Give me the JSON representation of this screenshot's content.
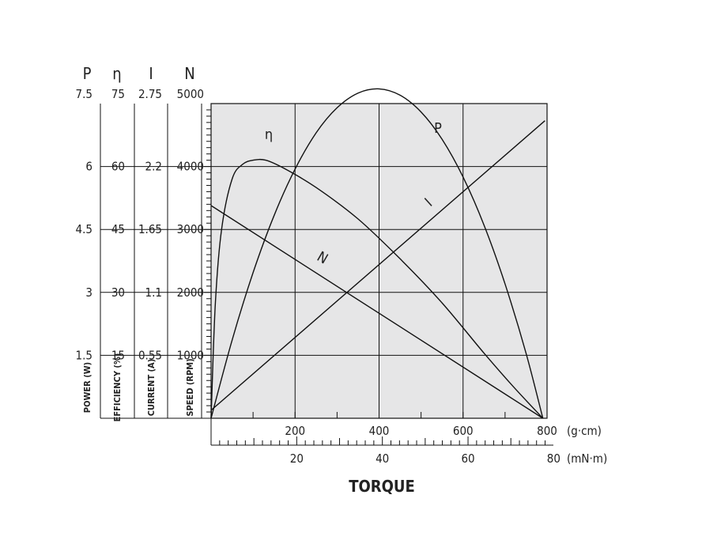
{
  "chart_data": {
    "type": "line",
    "xlabel": "TORQUE",
    "x_units": [
      "(g·cm)",
      "(mN·m)"
    ],
    "x_ticks_gcm": [
      "200",
      "400",
      "600",
      "800"
    ],
    "x_ticks_mnm": [
      "20",
      "40",
      "60",
      "80"
    ],
    "xlim_gcm": [
      0,
      800
    ],
    "grid": true,
    "axes": [
      {
        "symbol": "P",
        "label": "POWER (W)",
        "top": "7.5",
        "ticks": [
          "6",
          "4.5",
          "3",
          "1.5"
        ],
        "range": [
          0,
          7.5
        ]
      },
      {
        "symbol": "η",
        "label": "EFFICIENCY (%)",
        "top": "75",
        "ticks": [
          "60",
          "45",
          "30",
          "15"
        ],
        "range": [
          0,
          75
        ]
      },
      {
        "symbol": "I",
        "label": "CURRENT (A)",
        "top": "2.75",
        "ticks": [
          "2.2",
          "1.65",
          "1.1",
          "0.55"
        ],
        "range": [
          0,
          2.75
        ]
      },
      {
        "symbol": "N",
        "label": "SPEED (RPM)",
        "top": "5000",
        "ticks": [
          "4000",
          "3000",
          "2000",
          "1000"
        ],
        "range": [
          0,
          5000
        ]
      }
    ],
    "series": [
      {
        "name": "η",
        "axis": "EFFICIENCY (%)",
        "x": [
          0,
          10,
          25,
          50,
          75,
          100,
          130,
          175,
          250,
          350,
          450,
          550,
          650,
          720,
          790
        ],
        "y": [
          0,
          27,
          45,
          57,
          60.5,
          61.5,
          61.5,
          59.5,
          55,
          47.5,
          38,
          27.5,
          15.5,
          7.5,
          0
        ]
      },
      {
        "name": "P",
        "axis": "POWER (W)",
        "x": [
          0,
          50,
          100,
          150,
          200,
          250,
          300,
          350,
          400,
          450,
          500,
          550,
          600,
          650,
          700,
          750,
          790
        ],
        "y": [
          0,
          1.86,
          3.47,
          4.83,
          5.94,
          6.8,
          7.4,
          7.75,
          7.85,
          7.7,
          7.3,
          6.65,
          5.75,
          4.6,
          3.2,
          1.55,
          0
        ]
      },
      {
        "name": "I",
        "axis": "CURRENT (A)",
        "x": [
          0,
          795
        ],
        "y": [
          0.07,
          2.6
        ]
      },
      {
        "name": "N",
        "axis": "SPEED (RPM)",
        "x": [
          0,
          790
        ],
        "y": [
          3380,
          0
        ]
      }
    ]
  }
}
